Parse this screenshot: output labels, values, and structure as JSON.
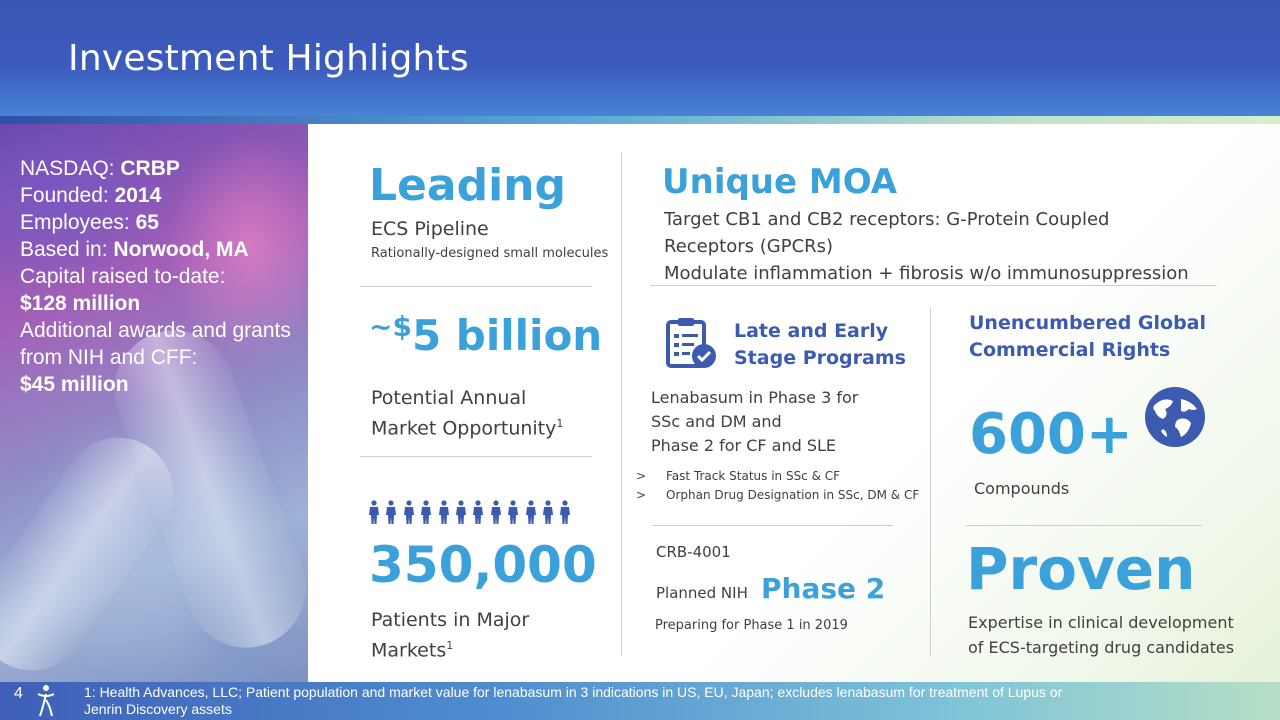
{
  "header": {
    "title": "Investment Highlights"
  },
  "company_facts": {
    "nasdaq_label": "NASDAQ: ",
    "nasdaq_value": "CRBP",
    "founded_label": "Founded: ",
    "founded_value": "2014",
    "employees_label": "Employees: ",
    "employees_value": "65",
    "based_label": "Based in: ",
    "based_value": "Norwood, MA",
    "capital_label": "Capital raised to-date:",
    "capital_value": "$128 million",
    "awards_label": "Additional awards and grants from NIH and CFF:",
    "awards_value": "$45 million"
  },
  "leading": {
    "heading": "Leading",
    "subtitle": "ECS Pipeline",
    "note": "Rationally-designed small molecules"
  },
  "market": {
    "prefix": "~$",
    "value": "5 billion",
    "label_line1": "Potential Annual",
    "label_line2": "Market Opportunity",
    "footnote_mark": "1"
  },
  "patients": {
    "value": "350,000",
    "label_line1": "Patients in Major",
    "label_line2": "Markets",
    "footnote_mark": "1"
  },
  "moa": {
    "heading": "Unique MOA",
    "line1": "Target CB1 and CB2 receptors: G-Protein Coupled",
    "line2": "Receptors (GPCRs)",
    "line3": "Modulate inflammation + fibrosis w/o immunosuppression"
  },
  "programs": {
    "heading_line1": "Late and Early",
    "heading_line2": "Stage Programs",
    "icon": "clipboard-check-icon",
    "text_line1": "Lenabasum in Phase 3 for",
    "text_line2": "SSc and DM and",
    "text_line3": "Phase 2 for CF and SLE",
    "bullets": [
      {
        "marker": ">",
        "text": "Fast Track Status in SSc & CF"
      },
      {
        "marker": ">",
        "text": "Orphan Drug Designation in SSc, DM & CF"
      }
    ]
  },
  "crb": {
    "name": "CRB-4001",
    "planned_prefix": "Planned NIH ",
    "phase": "Phase 2",
    "preparing": "Preparing for Phase 1 in 2019"
  },
  "rights": {
    "heading_line1": "Unencumbered Global",
    "heading_line2": "Commercial Rights",
    "icon": "globe-icon",
    "value": "600+",
    "label": "Compounds"
  },
  "proven": {
    "heading": "Proven",
    "line1": "Expertise in clinical development",
    "line2": "of ECS-targeting drug candidates"
  },
  "footer": {
    "page_number": "4",
    "logo_icon": "person-star-logo-icon",
    "note_line1": "1: Health Advances, LLC; Patient population and market value for lenabasum in 3 indications in US, EU, Japan; excludes lenabasum for treatment of Lupus or",
    "note_line2": "Jenrin Discovery assets"
  },
  "colors": {
    "accent_blue": "#3aa1db",
    "navy": "#3c5bb0",
    "header": "#3c5bbd"
  }
}
